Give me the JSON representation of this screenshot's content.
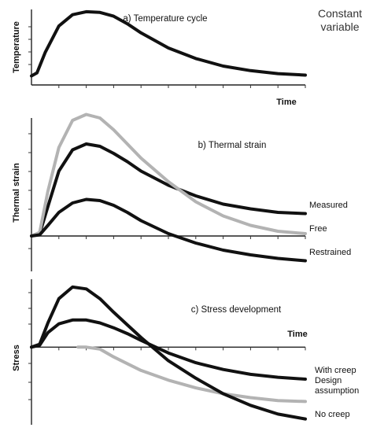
{
  "corner_note": [
    "Constant",
    "variable"
  ],
  "colors": {
    "black_series": "#111111",
    "gray_series": "#b3b3b3"
  },
  "chart_data": [
    {
      "type": "line",
      "title": "a) Temperature cycle",
      "xlabel": "Time",
      "ylabel": "Temperature",
      "grid": false,
      "xlim": [
        0,
        10
      ],
      "ylim": [
        0,
        10
      ],
      "series": [
        {
          "name": "",
          "color": "#111111",
          "x": [
            0,
            0.2,
            0.5,
            1,
            1.5,
            2,
            2.5,
            3,
            3.5,
            4,
            5,
            6,
            7,
            8,
            9,
            10
          ],
          "values": [
            1.2,
            1.6,
            4.3,
            7.8,
            9.3,
            9.7,
            9.6,
            9.1,
            8.1,
            6.9,
            4.9,
            3.5,
            2.5,
            1.9,
            1.5,
            1.3
          ]
        }
      ]
    },
    {
      "type": "line",
      "title": "b) Thermal strain",
      "xlabel": "",
      "ylabel": "Thermal strain",
      "grid": false,
      "xlim": [
        0,
        10
      ],
      "ylim": [
        -3,
        10
      ],
      "series": [
        {
          "name": "Measured",
          "color": "#111111",
          "x": [
            0,
            0.3,
            0.6,
            1,
            1.5,
            2,
            2.5,
            3,
            3.5,
            4,
            5,
            6,
            7,
            8,
            9,
            10
          ],
          "values": [
            0,
            0.2,
            2.5,
            5.5,
            7.3,
            7.8,
            7.6,
            7.0,
            6.3,
            5.5,
            4.3,
            3.4,
            2.7,
            2.3,
            2.0,
            1.9
          ]
        },
        {
          "name": "Free",
          "color": "#b3b3b3",
          "x": [
            0,
            0.3,
            0.6,
            1,
            1.5,
            2,
            2.5,
            3,
            3.5,
            4,
            5,
            6,
            7,
            8,
            9,
            10
          ],
          "values": [
            0,
            0.3,
            3.8,
            7.5,
            9.8,
            10.3,
            10.0,
            9.0,
            7.8,
            6.6,
            4.6,
            2.9,
            1.7,
            0.9,
            0.4,
            0.2
          ]
        },
        {
          "name": "Restrained",
          "color": "#111111",
          "x": [
            0,
            0.3,
            0.6,
            1,
            1.5,
            2,
            2.5,
            3,
            3.5,
            4,
            5,
            6,
            7,
            8,
            9,
            10
          ],
          "values": [
            0,
            0.1,
            0.9,
            2.0,
            2.8,
            3.1,
            3.0,
            2.6,
            2.0,
            1.3,
            0.2,
            -0.6,
            -1.2,
            -1.6,
            -1.9,
            -2.1
          ]
        }
      ]
    },
    {
      "type": "line",
      "title": "c) Stress development",
      "xlabel": "Time",
      "ylabel": "Stress",
      "grid": false,
      "xlim": [
        0,
        10
      ],
      "ylim": [
        -8,
        7
      ],
      "series": [
        {
          "name": "With creep",
          "color": "#111111",
          "x": [
            0,
            0.3,
            0.6,
            1,
            1.5,
            2,
            2.5,
            3,
            3.5,
            4,
            5,
            6,
            7,
            8,
            9,
            10
          ],
          "values": [
            0,
            0.2,
            1.5,
            2.4,
            2.8,
            2.8,
            2.5,
            2.0,
            1.4,
            0.7,
            -0.6,
            -1.6,
            -2.3,
            -2.8,
            -3.1,
            -3.3
          ]
        },
        {
          "name": "Design\nassumption",
          "color": "#b3b3b3",
          "x": [
            1.7,
            2,
            2.5,
            3,
            3.5,
            4,
            5,
            6,
            7,
            8,
            9,
            10
          ],
          "values": [
            0,
            0,
            -0.2,
            -1.0,
            -1.7,
            -2.4,
            -3.4,
            -4.2,
            -4.8,
            -5.2,
            -5.5,
            -5.6
          ]
        },
        {
          "name": "No creep",
          "color": "#111111",
          "x": [
            0,
            0.3,
            0.6,
            1,
            1.5,
            2,
            2.5,
            3,
            3.5,
            4,
            5,
            6,
            7,
            8,
            9,
            10
          ],
          "values": [
            0,
            0.3,
            2.5,
            5.0,
            6.2,
            6.0,
            5.0,
            3.6,
            2.3,
            1.0,
            -1.4,
            -3.2,
            -4.8,
            -6.0,
            -6.9,
            -7.4
          ]
        }
      ]
    }
  ]
}
